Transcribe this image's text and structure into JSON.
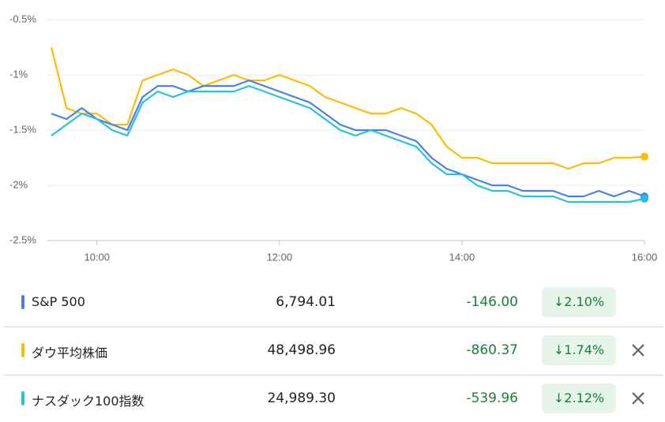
{
  "chart_data": {
    "type": "line",
    "x": [
      570,
      580,
      590,
      600,
      610,
      620,
      630,
      640,
      650,
      660,
      670,
      680,
      690,
      700,
      710,
      720,
      730,
      740,
      750,
      760,
      770,
      780,
      790,
      800,
      810,
      820,
      830,
      840,
      850,
      860,
      870,
      880,
      890,
      900,
      910,
      920,
      930,
      940,
      950,
      960
    ],
    "xlim": [
      570,
      960
    ],
    "xticks": [
      {
        "value": 600,
        "label": "10:00"
      },
      {
        "value": 720,
        "label": "12:00"
      },
      {
        "value": 840,
        "label": "14:00"
      },
      {
        "value": 960,
        "label": "16:00"
      }
    ],
    "ylim": [
      -2.5,
      -0.5
    ],
    "yticks": [
      {
        "value": -0.5,
        "label": "-0.5%"
      },
      {
        "value": -1,
        "label": "-1%"
      },
      {
        "value": -1.5,
        "label": "-1.5%"
      },
      {
        "value": -2,
        "label": "-2%"
      },
      {
        "value": -2.5,
        "label": "-2.5%"
      }
    ],
    "grid": true,
    "series": [
      {
        "name": "S&P 500",
        "color": "#4a7ee8",
        "values": [
          -1.35,
          -1.4,
          -1.3,
          -1.4,
          -1.45,
          -1.5,
          -1.2,
          -1.1,
          -1.1,
          -1.15,
          -1.1,
          -1.1,
          -1.1,
          -1.05,
          -1.1,
          -1.15,
          -1.2,
          -1.25,
          -1.35,
          -1.45,
          -1.5,
          -1.5,
          -1.5,
          -1.55,
          -1.6,
          -1.75,
          -1.85,
          -1.9,
          -1.95,
          -2.0,
          -2.0,
          -2.05,
          -2.05,
          -2.05,
          -2.1,
          -2.1,
          -2.05,
          -2.1,
          -2.05,
          -2.1
        ]
      },
      {
        "name": "ダウ平均株価",
        "color": "#fbbc04",
        "values": [
          -0.75,
          -1.3,
          -1.35,
          -1.35,
          -1.45,
          -1.45,
          -1.05,
          -1.0,
          -0.95,
          -1.0,
          -1.1,
          -1.05,
          -1.0,
          -1.05,
          -1.05,
          -1.0,
          -1.05,
          -1.1,
          -1.2,
          -1.25,
          -1.3,
          -1.35,
          -1.35,
          -1.3,
          -1.35,
          -1.45,
          -1.65,
          -1.75,
          -1.75,
          -1.8,
          -1.8,
          -1.8,
          -1.8,
          -1.8,
          -1.85,
          -1.8,
          -1.8,
          -1.75,
          -1.75,
          -1.74
        ]
      },
      {
        "name": "ナスダック100指数",
        "color": "#24c1e0",
        "values": [
          -1.55,
          -1.45,
          -1.35,
          -1.4,
          -1.5,
          -1.55,
          -1.25,
          -1.15,
          -1.2,
          -1.15,
          -1.15,
          -1.15,
          -1.15,
          -1.1,
          -1.15,
          -1.2,
          -1.25,
          -1.3,
          -1.4,
          -1.5,
          -1.55,
          -1.5,
          -1.55,
          -1.6,
          -1.65,
          -1.8,
          -1.9,
          -1.9,
          -2.0,
          -2.05,
          -2.05,
          -2.1,
          -2.1,
          -2.1,
          -2.15,
          -2.15,
          -2.15,
          -2.15,
          -2.15,
          -2.12
        ]
      }
    ]
  },
  "table": {
    "rows": [
      {
        "price": "6,794.01",
        "change": "-146.00",
        "percent": "2.10%"
      },
      {
        "price": "48,498.96",
        "change": "-860.37",
        "percent": "1.74%"
      },
      {
        "price": "24,989.30",
        "change": "-539.96",
        "percent": "2.12%"
      }
    ]
  }
}
